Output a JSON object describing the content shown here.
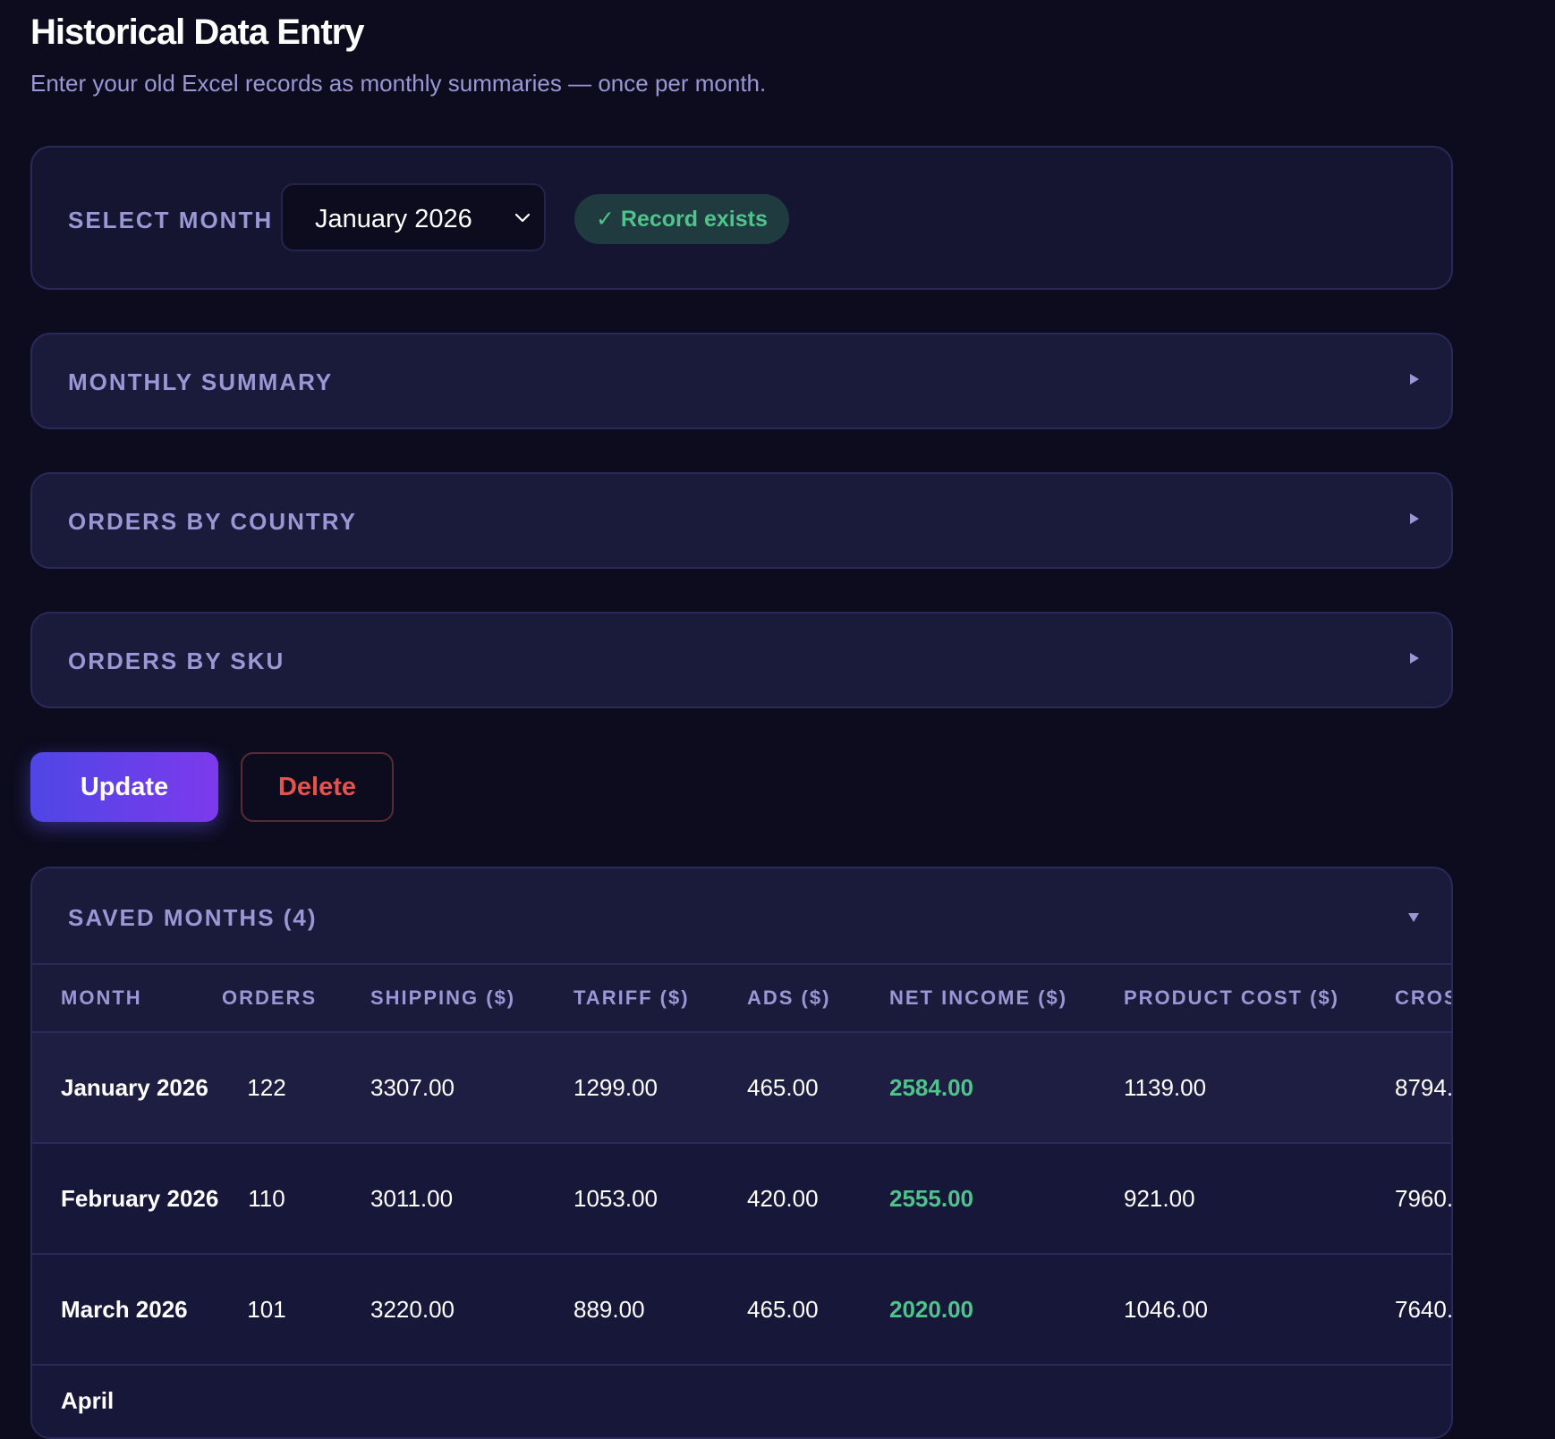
{
  "header": {
    "title": "Historical Data Entry",
    "subtitle": "Enter your old Excel records as monthly summaries — once per month."
  },
  "month_selector": {
    "label": "SELECT MONTH",
    "selected": "January 2026",
    "status": "✓ Record exists"
  },
  "sections": [
    {
      "title": "MONTHLY SUMMARY"
    },
    {
      "title": "ORDERS BY COUNTRY"
    },
    {
      "title": "ORDERS BY SKU"
    }
  ],
  "actions": {
    "update_label": "Update",
    "delete_label": "Delete"
  },
  "saved": {
    "title": "SAVED MONTHS (4)",
    "columns": [
      "MONTH",
      "ORDERS",
      "SHIPPING ($)",
      "TARIFF ($)",
      "ADS ($)",
      "NET INCOME ($)",
      "PRODUCT COST ($)",
      "CROS"
    ],
    "rows": [
      {
        "month": "January 2026",
        "orders": "122",
        "shipping": "3307.00",
        "tariff": "1299.00",
        "ads": "465.00",
        "net": "2584.00",
        "product_cost": "1139.00",
        "gross": "8794."
      },
      {
        "month": "February 2026",
        "orders": "110",
        "shipping": "3011.00",
        "tariff": "1053.00",
        "ads": "420.00",
        "net": "2555.00",
        "product_cost": "921.00",
        "gross": "7960."
      },
      {
        "month": "March 2026",
        "orders": "101",
        "shipping": "3220.00",
        "tariff": "889.00",
        "ads": "465.00",
        "net": "2020.00",
        "product_cost": "1046.00",
        "gross": "7640."
      },
      {
        "month": "April",
        "orders": "",
        "shipping": "",
        "tariff": "",
        "ads": "",
        "net": "",
        "product_cost": "",
        "gross": ""
      }
    ]
  },
  "colors": {
    "background": "#0c0c1e",
    "card": "#1a1a3a",
    "muted_text": "#9a97d6",
    "positive": "#4fc48a",
    "danger": "#e5534b",
    "accent": "#4f46e5"
  }
}
